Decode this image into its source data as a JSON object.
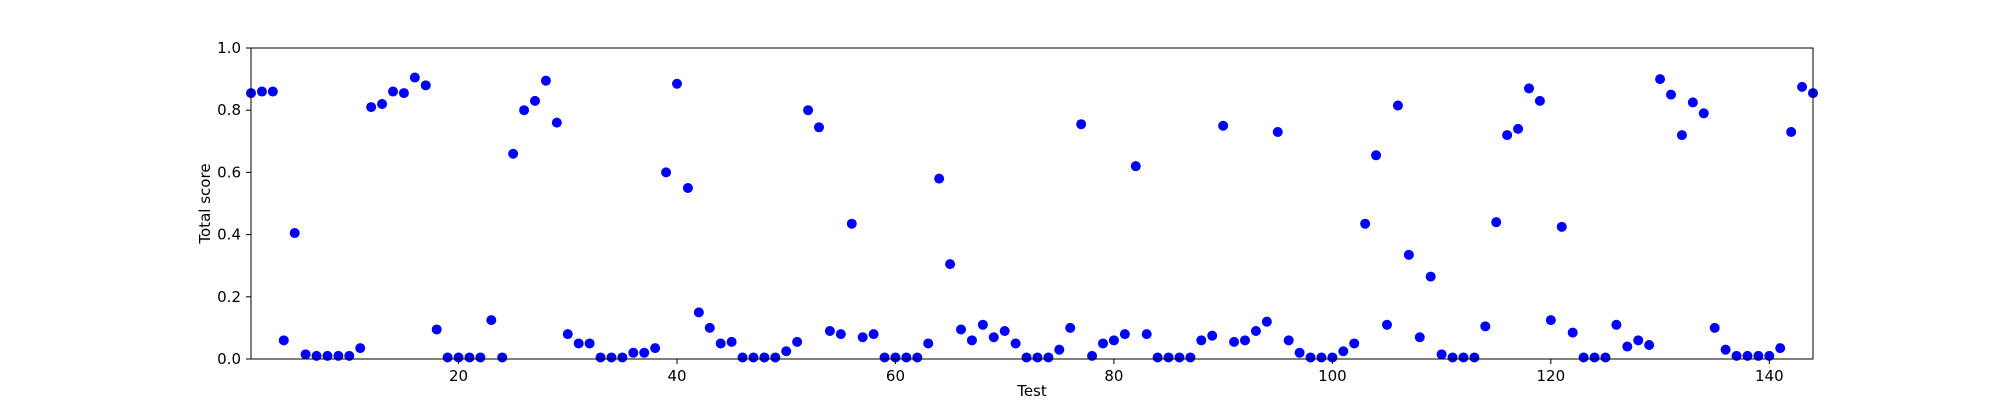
{
  "chart_data": {
    "type": "scatter",
    "xlabel": "Test",
    "ylabel": "Total score",
    "xlim": [
      1,
      144
    ],
    "ylim": [
      0.0,
      1.0
    ],
    "grid": false,
    "marker_color": "#0000ff",
    "x_ticks": [
      20,
      40,
      60,
      80,
      100,
      120,
      140
    ],
    "y_ticks": [
      0.0,
      0.2,
      0.4,
      0.6,
      0.8,
      1.0
    ],
    "x_tick_labels": [
      "20",
      "40",
      "60",
      "80",
      "100",
      "120",
      "140"
    ],
    "y_tick_labels": [
      "0.0",
      "0.2",
      "0.4",
      "0.6",
      "0.8",
      "1.0"
    ],
    "x": [
      1,
      2,
      3,
      4,
      5,
      6,
      7,
      8,
      9,
      10,
      11,
      12,
      13,
      14,
      15,
      16,
      17,
      18,
      19,
      20,
      21,
      22,
      23,
      24,
      25,
      26,
      27,
      28,
      29,
      30,
      31,
      32,
      33,
      34,
      35,
      36,
      37,
      38,
      39,
      40,
      41,
      42,
      43,
      44,
      45,
      46,
      47,
      48,
      49,
      50,
      51,
      52,
      53,
      54,
      55,
      56,
      57,
      58,
      59,
      60,
      61,
      62,
      63,
      64,
      65,
      66,
      67,
      68,
      69,
      70,
      71,
      72,
      73,
      74,
      75,
      76,
      77,
      78,
      79,
      80,
      81,
      82,
      83,
      84,
      85,
      86,
      87,
      88,
      89,
      90,
      91,
      92,
      93,
      94,
      95,
      96,
      97,
      98,
      99,
      100,
      101,
      102,
      103,
      104,
      105,
      106,
      107,
      108,
      109,
      110,
      111,
      112,
      113,
      114,
      115,
      116,
      117,
      118,
      119,
      120,
      121,
      122,
      123,
      124,
      125,
      126,
      127,
      128,
      129,
      130,
      131,
      132,
      133,
      134,
      135,
      136,
      137,
      138,
      139,
      140,
      141,
      142,
      143,
      144
    ],
    "y": [
      0.855,
      0.86,
      0.86,
      0.06,
      0.405,
      0.015,
      0.01,
      0.01,
      0.01,
      0.01,
      0.035,
      0.81,
      0.82,
      0.86,
      0.855,
      0.905,
      0.88,
      0.095,
      0.005,
      0.005,
      0.005,
      0.005,
      0.125,
      0.005,
      0.66,
      0.8,
      0.83,
      0.895,
      0.76,
      0.08,
      0.05,
      0.05,
      0.005,
      0.005,
      0.005,
      0.02,
      0.02,
      0.035,
      0.6,
      0.885,
      0.55,
      0.15,
      0.1,
      0.05,
      0.055,
      0.005,
      0.005,
      0.005,
      0.005,
      0.025,
      0.055,
      0.8,
      0.745,
      0.09,
      0.08,
      0.435,
      0.07,
      0.08,
      0.005,
      0.005,
      0.005,
      0.005,
      0.05,
      0.58,
      0.305,
      0.095,
      0.06,
      0.11,
      0.07,
      0.09,
      0.05,
      0.005,
      0.005,
      0.005,
      0.03,
      0.1,
      0.755,
      0.01,
      0.05,
      0.06,
      0.08,
      0.62,
      0.08,
      0.005,
      0.005,
      0.005,
      0.005,
      0.06,
      0.075,
      0.75,
      0.055,
      0.06,
      0.09,
      0.12,
      0.73,
      0.06,
      0.02,
      0.005,
      0.005,
      0.005,
      0.025,
      0.05,
      0.435,
      0.655,
      0.11,
      0.815,
      0.335,
      0.07,
      0.265,
      0.015,
      0.005,
      0.005,
      0.005,
      0.105,
      0.44,
      0.72,
      0.74,
      0.87,
      0.83,
      0.125,
      0.425,
      0.085,
      0.005,
      0.005,
      0.005,
      0.11,
      0.04,
      0.06,
      0.045,
      0.9,
      0.85,
      0.72,
      0.825,
      0.79,
      0.1,
      0.03,
      0.01,
      0.01,
      0.01,
      0.01,
      0.035,
      0.73,
      0.875,
      0.855
    ]
  }
}
